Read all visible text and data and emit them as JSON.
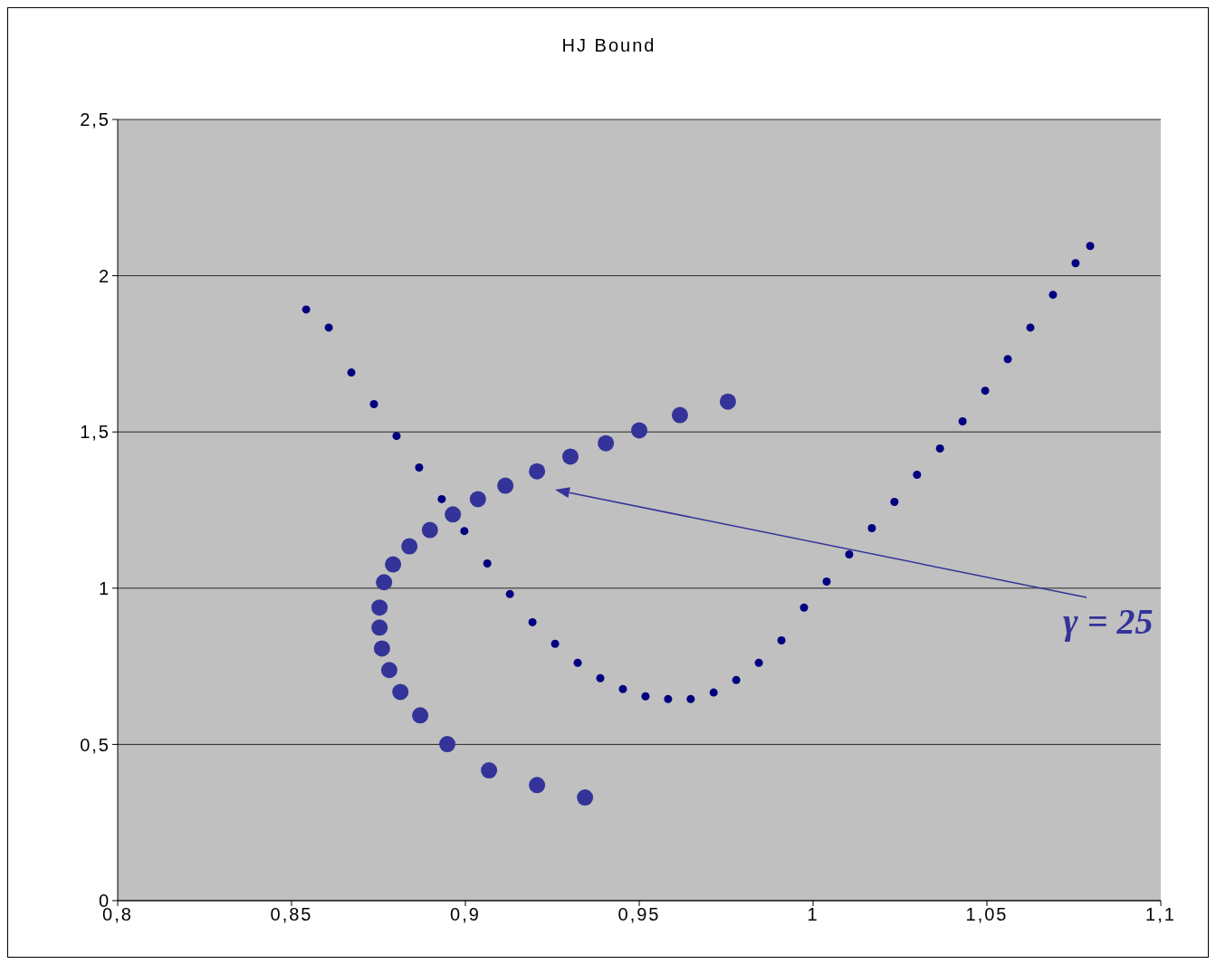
{
  "chart_data": {
    "type": "scatter",
    "title": "HJ Bound",
    "xlim": [
      0.8,
      1.1
    ],
    "xticks": [
      {
        "value": 0.8,
        "label": "0,8"
      },
      {
        "value": 0.85,
        "label": "0,85"
      },
      {
        "value": 0.9,
        "label": "0,9"
      },
      {
        "value": 0.95,
        "label": "0,95"
      },
      1,
      {
        "value": 1.05,
        "label": "1,05"
      },
      {
        "value": 1.1,
        "label": "1,1"
      }
    ],
    "ylim": [
      0,
      2.5
    ],
    "yticks": [
      0,
      {
        "value": 0.5,
        "label": "0,5"
      },
      1,
      {
        "value": 1.5,
        "label": "1,5"
      },
      2,
      {
        "value": 2.5,
        "label": "2,5"
      }
    ],
    "grid": "y",
    "legend": false,
    "marker": "circle",
    "series": [
      {
        "color": "#000080",
        "x": [
          0.8542,
          0.8607,
          0.8672,
          0.8737,
          0.8802,
          0.8867,
          0.8932,
          0.8997,
          0.9063,
          0.9128,
          0.9193,
          0.9258,
          0.9323,
          0.9388,
          0.9453,
          0.9518,
          0.9583,
          0.9648,
          0.9714,
          0.9779,
          0.9844,
          0.9909,
          0.9974,
          1.0039,
          1.0104,
          1.0169,
          1.0234,
          1.0299,
          1.0365,
          1.043,
          1.0495,
          1.056,
          1.0625,
          1.069,
          1.0755,
          1.0797
        ],
        "values": [
          1.892,
          1.834,
          1.69,
          1.589,
          1.487,
          1.386,
          1.285,
          1.183,
          1.079,
          0.981,
          0.891,
          0.822,
          0.761,
          0.712,
          0.677,
          0.654,
          0.645,
          0.645,
          0.666,
          0.706,
          0.761,
          0.833,
          0.938,
          1.021,
          1.108,
          1.192,
          1.276,
          1.363,
          1.447,
          1.534,
          1.632,
          1.733,
          1.834,
          1.939,
          2.04,
          2.095
        ]
      },
      {
        "color": "#333399",
        "x": [
          0.9344,
          0.9206,
          0.9068,
          0.8948,
          0.887,
          0.8813,
          0.8781,
          0.876,
          0.8753,
          0.8753,
          0.8766,
          0.8792,
          0.8839,
          0.8898,
          0.8964,
          0.9036,
          0.9115,
          0.9206,
          0.9302,
          0.9404,
          0.95,
          0.9617,
          0.9755
        ],
        "values": [
          0.33,
          0.37,
          0.417,
          0.501,
          0.593,
          0.668,
          0.738,
          0.807,
          0.874,
          0.938,
          1.019,
          1.076,
          1.134,
          1.186,
          1.236,
          1.285,
          1.328,
          1.374,
          1.421,
          1.464,
          1.505,
          1.554,
          1.597
        ]
      }
    ],
    "annotations": [
      "γ = 25"
    ]
  }
}
